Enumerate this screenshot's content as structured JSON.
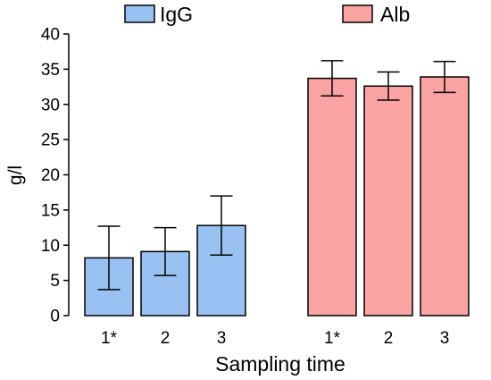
{
  "chart_data": {
    "type": "bar",
    "title": "",
    "xlabel": "Sampling time",
    "ylabel": "g/l",
    "ylim": [
      0,
      40
    ],
    "yticks": [
      0,
      5,
      10,
      15,
      20,
      25,
      30,
      35,
      40
    ],
    "grid": false,
    "legend_position": "top",
    "groups": [
      {
        "name": "IgG",
        "color": "#99c2f2",
        "categories": [
          "1*",
          "2",
          "3"
        ],
        "values": [
          8.2,
          9.1,
          12.8
        ],
        "errors": [
          4.5,
          3.4,
          4.2
        ]
      },
      {
        "name": "Alb",
        "color": "#f9a3a3",
        "categories": [
          "1*",
          "2",
          "3"
        ],
        "values": [
          33.7,
          32.6,
          33.9
        ],
        "errors": [
          2.5,
          2.0,
          2.2
        ]
      }
    ]
  }
}
